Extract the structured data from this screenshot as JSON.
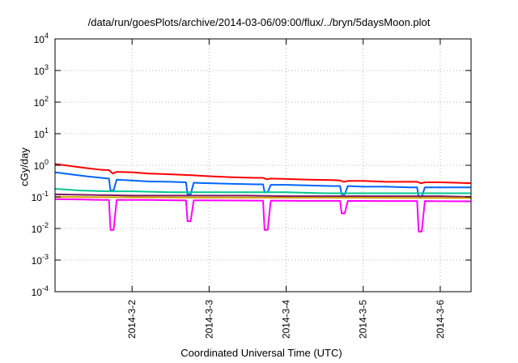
{
  "chart_data": {
    "type": "line",
    "title": "/data/run/goesPlots/archive/2014-03-06/09:00/flux/../bryn/5daysMoon.plot",
    "xlabel": "Coordinated Universal Time (UTC)",
    "ylabel": "cGy/day",
    "yscale": "log",
    "ylim": [
      0.0001,
      10000
    ],
    "xlim": [
      0,
      5.4
    ],
    "grid": true,
    "legend": "none",
    "y_ticks": [
      {
        "base": "10",
        "exp": "-4",
        "value": 0.0001
      },
      {
        "base": "10",
        "exp": "-3",
        "value": 0.001
      },
      {
        "base": "10",
        "exp": "-2",
        "value": 0.01
      },
      {
        "base": "10",
        "exp": "-1",
        "value": 0.1
      },
      {
        "base": "10",
        "exp": "0",
        "value": 1
      },
      {
        "base": "10",
        "exp": "1",
        "value": 10
      },
      {
        "base": "10",
        "exp": "2",
        "value": 100
      },
      {
        "base": "10",
        "exp": "3",
        "value": 1000
      },
      {
        "base": "10",
        "exp": "4",
        "value": 10000
      }
    ],
    "x_ticks": [
      {
        "label": "2014-3-2",
        "value": 1
      },
      {
        "label": "2014-3-3",
        "value": 2
      },
      {
        "label": "2014-3-4",
        "value": 3
      },
      {
        "label": "2014-3-5",
        "value": 4
      },
      {
        "label": "2014-3-6",
        "value": 5
      }
    ],
    "series": [
      {
        "color": "#ff0000",
        "x": [
          0,
          0.2,
          0.4,
          0.6,
          0.7,
          0.75,
          0.8,
          1.0,
          1.2,
          1.5,
          1.8,
          2.0,
          2.3,
          2.6,
          2.7,
          2.75,
          2.8,
          3.0,
          3.3,
          3.6,
          3.7,
          3.75,
          3.8,
          4.0,
          4.3,
          4.6,
          4.7,
          4.75,
          4.8,
          5.0,
          5.2,
          5.4
        ],
        "values": [
          1.1,
          0.95,
          0.82,
          0.72,
          0.7,
          0.55,
          0.62,
          0.6,
          0.55,
          0.52,
          0.48,
          0.45,
          0.42,
          0.4,
          0.4,
          0.36,
          0.38,
          0.37,
          0.35,
          0.34,
          0.33,
          0.3,
          0.32,
          0.32,
          0.3,
          0.3,
          0.3,
          0.27,
          0.29,
          0.29,
          0.28,
          0.27
        ]
      },
      {
        "color": "#0066ff",
        "x": [
          0,
          0.2,
          0.4,
          0.6,
          0.7,
          0.72,
          0.76,
          0.8,
          1.0,
          1.2,
          1.5,
          1.7,
          1.72,
          1.76,
          1.8,
          2.0,
          2.3,
          2.6,
          2.7,
          2.72,
          2.76,
          2.8,
          3.0,
          3.3,
          3.6,
          3.7,
          3.72,
          3.76,
          3.8,
          4.0,
          4.3,
          4.6,
          4.7,
          4.72,
          4.76,
          4.8,
          5.0,
          5.2,
          5.4
        ],
        "values": [
          0.6,
          0.52,
          0.45,
          0.4,
          0.38,
          0.16,
          0.16,
          0.35,
          0.33,
          0.31,
          0.3,
          0.29,
          0.12,
          0.12,
          0.28,
          0.27,
          0.26,
          0.25,
          0.25,
          0.14,
          0.14,
          0.24,
          0.24,
          0.23,
          0.22,
          0.22,
          0.12,
          0.12,
          0.22,
          0.21,
          0.21,
          0.2,
          0.2,
          0.1,
          0.1,
          0.2,
          0.2,
          0.2,
          0.2
        ]
      },
      {
        "color": "#00c890",
        "x": [
          0,
          0.3,
          0.7,
          1.0,
          1.5,
          2.0,
          2.5,
          3.0,
          3.5,
          4.0,
          4.5,
          5.0,
          5.4
        ],
        "values": [
          0.18,
          0.16,
          0.15,
          0.15,
          0.14,
          0.14,
          0.14,
          0.14,
          0.13,
          0.13,
          0.13,
          0.13,
          0.13
        ]
      },
      {
        "color": "#7a1a60",
        "x": [
          0,
          0.5,
          1.0,
          1.5,
          2.0,
          2.5,
          3.0,
          3.5,
          4.0,
          4.5,
          5.0,
          5.4
        ],
        "values": [
          0.12,
          0.115,
          0.11,
          0.11,
          0.11,
          0.11,
          0.105,
          0.105,
          0.105,
          0.105,
          0.105,
          0.1
        ]
      },
      {
        "color": "#d4a000",
        "x": [
          0,
          0.5,
          1.0,
          1.5,
          2.0,
          2.5,
          3.0,
          3.5,
          4.0,
          4.5,
          5.0,
          5.4
        ],
        "values": [
          0.1,
          0.098,
          0.097,
          0.096,
          0.095,
          0.095,
          0.094,
          0.094,
          0.094,
          0.093,
          0.093,
          0.092
        ]
      },
      {
        "color": "#ff00ff",
        "x": [
          0,
          0.3,
          0.6,
          0.7,
          0.72,
          0.76,
          0.8,
          1.2,
          1.6,
          1.7,
          1.72,
          1.76,
          1.8,
          2.2,
          2.6,
          2.7,
          2.72,
          2.76,
          2.8,
          3.2,
          3.6,
          3.7,
          3.72,
          3.76,
          3.8,
          4.2,
          4.6,
          4.7,
          4.72,
          4.76,
          4.8,
          5.0,
          5.2,
          5.4
        ],
        "values": [
          0.085,
          0.083,
          0.08,
          0.08,
          0.009,
          0.009,
          0.08,
          0.08,
          0.078,
          0.078,
          0.017,
          0.017,
          0.078,
          0.077,
          0.076,
          0.076,
          0.009,
          0.009,
          0.076,
          0.075,
          0.075,
          0.075,
          0.03,
          0.03,
          0.075,
          0.074,
          0.074,
          0.074,
          0.008,
          0.008,
          0.074,
          0.073,
          0.073,
          0.072
        ]
      }
    ]
  }
}
